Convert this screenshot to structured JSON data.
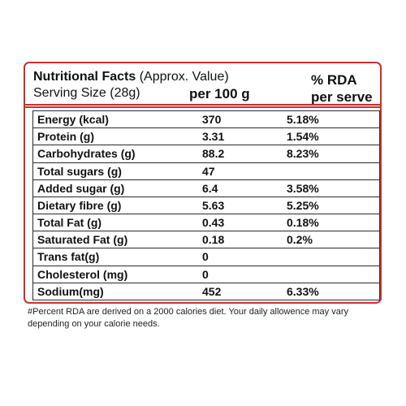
{
  "header": {
    "title_bold": "Nutritional Facts",
    "title_rest": "(Approx. Value)",
    "serving_size": "Serving Size (28g)",
    "per_100g": "per 100 g",
    "rda_line1": "% RDA",
    "rda_line2": "per serve"
  },
  "rows": [
    {
      "name": "Energy (kcal)",
      "per_100g": "370",
      "rda": "5.18%"
    },
    {
      "name": "Protein (g)",
      "per_100g": "3.31",
      "rda": "1.54%"
    },
    {
      "name": "Carbohydrates (g)",
      "per_100g": "88.2",
      "rda": "8.23%"
    },
    {
      "name": "Total sugars (g)",
      "per_100g": "47",
      "rda": ""
    },
    {
      "name": "Added sugar (g)",
      "per_100g": "6.4",
      "rda": "3.58%"
    },
    {
      "name": "Dietary fibre (g)",
      "per_100g": "5.63",
      "rda": "5.25%"
    },
    {
      "name": "Total Fat (g)",
      "per_100g": "0.43",
      "rda": "0.18%"
    },
    {
      "name": "Saturated Fat (g)",
      "per_100g": "0.18",
      "rda": "0.2%"
    },
    {
      "name": "Trans fat(g)",
      "per_100g": "0",
      "rda": ""
    },
    {
      "name": "Cholesterol (mg)",
      "per_100g": "0",
      "rda": ""
    },
    {
      "name": "Sodium(mg)",
      "per_100g": "452",
      "rda": "6.33%"
    }
  ],
  "footnote": "#Percent RDA are derived on a 2000 calories diet. Your daily allowence may vary depending on your calorie needs.",
  "colors": {
    "border_accent": "#c9302c"
  }
}
